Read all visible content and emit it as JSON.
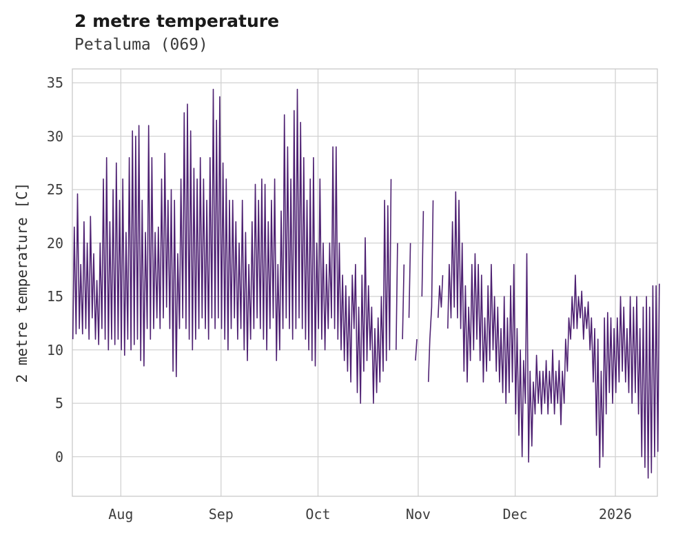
{
  "header": {
    "title": "2 metre temperature",
    "subtitle": "Petaluma (069)"
  },
  "chart_data": {
    "type": "line",
    "title": "2 metre temperature",
    "subtitle": "Petaluma (069)",
    "xlabel": "",
    "ylabel": "2 metre temperature [C]",
    "line_color": "#4e2172",
    "grid": true,
    "grid_color": "#d2d2d2",
    "spine_color": "#c8c8c8",
    "ylim": [
      -3.7,
      36.3
    ],
    "y_ticks": [
      0,
      5,
      10,
      15,
      20,
      25,
      30,
      35
    ],
    "x_tick_labels": [
      "Aug",
      "Sep",
      "Oct",
      "Nov",
      "Dec",
      "2026"
    ],
    "x_tick_days": [
      15,
      46,
      76,
      107,
      137,
      168
    ],
    "series_name": "2 metre temperature [C]",
    "note": "daily_min_max: one [daily low C, daily high C] pair per day from mid-July 2025 through mid-January 2026; null = missing data gap",
    "daily_min_max": [
      [
        11,
        21.5
      ],
      [
        11.5,
        24.6
      ],
      [
        12,
        18
      ],
      [
        11.5,
        22
      ],
      [
        12,
        20
      ],
      [
        11,
        22.5
      ],
      [
        13,
        19
      ],
      [
        11,
        16.5
      ],
      [
        10.5,
        20
      ],
      [
        12,
        26
      ],
      [
        11,
        28
      ],
      [
        10,
        22
      ],
      [
        11,
        25
      ],
      [
        10.5,
        27.5
      ],
      [
        11,
        24
      ],
      [
        10,
        26
      ],
      [
        9.5,
        21
      ],
      [
        11,
        28
      ],
      [
        10,
        30.5
      ],
      [
        10.5,
        30
      ],
      [
        11,
        31
      ],
      [
        9,
        24
      ],
      [
        8.5,
        21
      ],
      [
        12,
        31
      ],
      [
        11,
        28
      ],
      [
        12,
        21
      ],
      [
        13,
        21.5
      ],
      [
        12,
        26
      ],
      [
        13,
        28.4
      ],
      [
        14,
        24
      ],
      [
        12,
        25
      ],
      [
        8,
        24
      ],
      [
        7.5,
        19
      ],
      [
        12,
        26
      ],
      [
        13,
        32.2
      ],
      [
        12,
        33
      ],
      [
        11,
        30.5
      ],
      [
        10,
        27
      ],
      [
        11,
        26
      ],
      [
        12,
        28
      ],
      [
        13,
        26
      ],
      [
        12,
        24
      ],
      [
        11,
        28
      ],
      [
        13,
        34.4
      ],
      [
        12,
        31.5
      ],
      [
        13,
        33.7
      ],
      [
        12,
        27.5
      ],
      [
        11,
        26
      ],
      [
        10,
        24
      ],
      [
        12,
        24
      ],
      [
        13,
        22
      ],
      [
        11,
        20
      ],
      [
        12,
        24
      ],
      [
        10,
        21
      ],
      [
        9,
        18
      ],
      [
        11,
        22
      ],
      [
        12,
        25.5
      ],
      [
        13,
        24
      ],
      [
        12,
        26
      ],
      [
        11,
        25.5
      ],
      [
        10,
        22
      ],
      [
        12,
        24
      ],
      [
        13,
        26
      ],
      [
        9,
        18
      ],
      [
        10,
        23
      ],
      [
        12,
        32
      ],
      [
        13,
        29
      ],
      [
        12,
        26
      ],
      [
        11,
        32.4
      ],
      [
        12,
        34.4
      ],
      [
        13,
        31.3
      ],
      [
        12,
        28
      ],
      [
        11,
        24
      ],
      [
        10,
        26
      ],
      [
        9,
        28
      ],
      [
        8.5,
        20
      ],
      [
        12,
        26
      ],
      [
        11,
        20
      ],
      [
        10,
        18
      ],
      [
        12,
        20
      ],
      [
        13,
        29
      ],
      [
        12,
        29
      ],
      [
        11,
        20
      ],
      [
        10,
        17
      ],
      [
        9,
        16
      ],
      [
        8,
        15
      ],
      [
        7,
        17
      ],
      [
        12,
        18
      ],
      [
        6,
        14
      ],
      [
        5,
        17
      ],
      [
        8,
        20.5
      ],
      [
        9,
        16
      ],
      [
        10,
        14
      ],
      [
        5,
        12
      ],
      [
        6,
        13
      ],
      [
        7,
        15
      ],
      [
        8,
        24
      ],
      [
        9,
        23.5
      ],
      [
        10,
        26
      ],
      null,
      [
        10,
        20
      ],
      null,
      [
        11,
        18
      ],
      null,
      [
        13,
        20
      ],
      null,
      [
        9,
        11
      ],
      null,
      [
        15,
        23
      ],
      null,
      [
        7,
        11
      ],
      [
        14,
        24
      ],
      null,
      [
        13,
        16
      ],
      [
        14,
        17
      ],
      null,
      [
        12,
        18
      ],
      [
        13,
        22
      ],
      [
        14,
        24.8
      ],
      [
        13,
        24
      ],
      [
        12,
        20
      ],
      [
        8,
        16
      ],
      [
        7,
        14
      ],
      [
        9,
        18
      ],
      [
        10,
        19
      ],
      [
        11,
        18
      ],
      [
        9,
        17
      ],
      [
        7,
        13
      ],
      [
        8,
        16
      ],
      [
        9,
        18
      ],
      [
        10,
        15
      ],
      [
        8,
        14
      ],
      [
        7,
        12
      ],
      [
        6,
        15
      ],
      [
        5,
        13
      ],
      [
        6,
        16
      ],
      [
        7,
        18
      ],
      [
        4,
        12
      ],
      [
        2,
        10
      ],
      [
        0,
        9
      ],
      [
        5,
        19
      ],
      [
        -0.5,
        8
      ],
      [
        1,
        7
      ],
      [
        4,
        9.5
      ],
      [
        5,
        8
      ],
      [
        4,
        8
      ],
      [
        5,
        9
      ],
      [
        4,
        8
      ],
      [
        5,
        10
      ],
      [
        4,
        8
      ],
      [
        5,
        9
      ],
      [
        3,
        8
      ],
      [
        5,
        11
      ],
      [
        8,
        13
      ],
      [
        11,
        15
      ],
      [
        12,
        17
      ],
      [
        12,
        15
      ],
      [
        13,
        15.5
      ],
      [
        11,
        14
      ],
      [
        12,
        14.5
      ],
      [
        10,
        13
      ],
      [
        7,
        12
      ],
      [
        2,
        11
      ],
      [
        -1,
        8
      ],
      [
        0,
        13
      ],
      [
        4,
        13.5
      ],
      [
        6,
        13
      ],
      [
        5,
        12
      ],
      [
        6,
        13
      ],
      [
        7,
        15
      ],
      [
        8,
        14
      ],
      [
        7,
        12
      ],
      [
        6,
        15
      ],
      [
        5,
        14
      ],
      [
        6,
        15
      ],
      [
        4,
        12
      ],
      [
        0,
        14
      ],
      [
        -1,
        15
      ],
      [
        -2,
        14
      ],
      [
        -1.5,
        16
      ],
      [
        0,
        16
      ],
      [
        0.5,
        16.2
      ]
    ]
  }
}
